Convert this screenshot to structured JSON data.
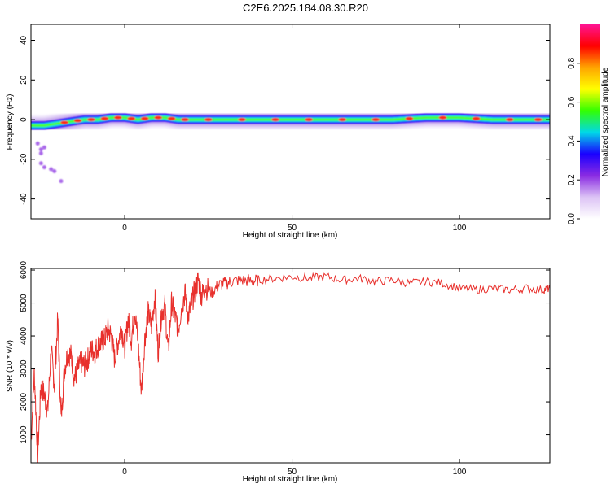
{
  "title": "C2E6.2025.184.08.30.R20",
  "chart_data": [
    {
      "type": "heatmap",
      "xlabel": "Height of straight line (km)",
      "ylabel": "Frequency (Hz)",
      "xlim": [
        -28,
        127
      ],
      "ylim": [
        -50,
        48
      ],
      "xticks": [
        0,
        50,
        100
      ],
      "yticks": [
        -40,
        -20,
        0,
        20,
        40
      ],
      "grid": false,
      "colorbar": {
        "label": "Normalized spectral amplitude",
        "range": [
          0,
          1
        ],
        "ticks": [
          0.0,
          0.2,
          0.4,
          0.6,
          0.8
        ],
        "colors": [
          "#ffffff",
          "#dcc3f5",
          "#8a2be2",
          "#1a00ff",
          "#00d8e8",
          "#33ff00",
          "#ffff00",
          "#ffa500",
          "#ff0000",
          "#ff1493"
        ]
      },
      "ridge": {
        "x": [
          -28,
          -24,
          -20,
          -16,
          -12,
          -8,
          -4,
          0,
          4,
          8,
          12,
          16,
          20,
          30,
          40,
          50,
          60,
          70,
          80,
          90,
          100,
          110,
          120,
          127
        ],
        "frequency": [
          -3,
          -3,
          -2,
          -1,
          0,
          0,
          1,
          1,
          0,
          1,
          1,
          0,
          0,
          0,
          0,
          0,
          0,
          0,
          0,
          1,
          1,
          0,
          0,
          0
        ]
      },
      "scatter_points": {
        "x": [
          -26,
          -25,
          -25,
          -24,
          -22,
          -21,
          -25,
          -19,
          -24
        ],
        "frequency": [
          -12,
          -15,
          -22,
          -24,
          -25,
          -26,
          -17,
          -31,
          -14
        ]
      }
    },
    {
      "type": "line",
      "xlabel": "Height of straight line (km)",
      "ylabel": "SNR (10 * v/v)",
      "xlim": [
        -28,
        127
      ],
      "ylim": [
        150,
        6050
      ],
      "xticks": [
        0,
        50,
        100
      ],
      "yticks": [
        1000,
        2000,
        3000,
        4000,
        5000,
        6000
      ],
      "grid": false,
      "color": "#e8302c",
      "series": [
        {
          "x": [
            -28,
            -27,
            -26,
            -25,
            -24,
            -23,
            -22,
            -21,
            -20,
            -19,
            -18,
            -17,
            -16,
            -15,
            -14,
            -13,
            -12,
            -11,
            -10,
            -9,
            -8,
            -7,
            -6,
            -5,
            -4,
            -3,
            -2,
            -1,
            0,
            1,
            2,
            3,
            4,
            5,
            6,
            7,
            8,
            9,
            10,
            11,
            12,
            13,
            14,
            15,
            16,
            17,
            18,
            19,
            20,
            21,
            22,
            23,
            24,
            26,
            28,
            30,
            32,
            35,
            38,
            40,
            45,
            50,
            55,
            60,
            65,
            70,
            75,
            80,
            85,
            90,
            95,
            100,
            105,
            110,
            115,
            120,
            125,
            127
          ],
          "values": [
            800,
            2900,
            400,
            2500,
            2200,
            1700,
            3600,
            2500,
            4500,
            1500,
            3000,
            3500,
            3400,
            2700,
            3000,
            3200,
            3100,
            3300,
            3600,
            3500,
            3700,
            3800,
            3900,
            4200,
            4000,
            3300,
            3800,
            4300,
            3600,
            4500,
            3900,
            4800,
            3800,
            2300,
            3900,
            4700,
            4300,
            5200,
            3500,
            4700,
            4900,
            3500,
            5000,
            4600,
            4200,
            4900,
            5300,
            4600,
            5000,
            5400,
            5700,
            5200,
            5500,
            5300,
            5550,
            5600,
            5650,
            5700,
            5650,
            5700,
            5750,
            5800,
            5750,
            5800,
            5700,
            5750,
            5650,
            5700,
            5600,
            5650,
            5600,
            5450,
            5400,
            5450,
            5400,
            5450,
            5400,
            5450
          ]
        }
      ]
    }
  ]
}
